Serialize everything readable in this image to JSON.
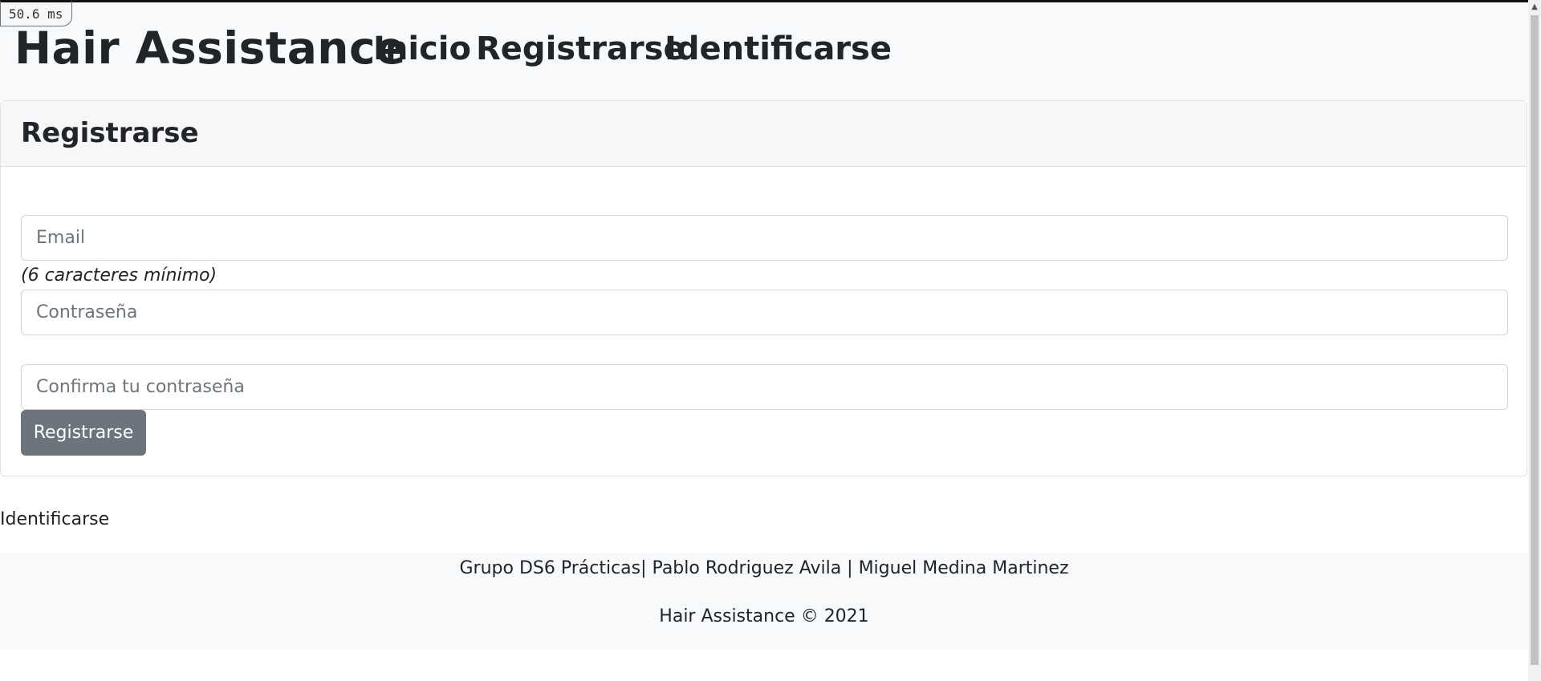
{
  "perf_badge": "50.6 ms",
  "navbar": {
    "brand": "Hair Assistance",
    "links": [
      "Inicio",
      "Registrarse",
      "Identificarse"
    ]
  },
  "card": {
    "title": "Registrarse",
    "email_placeholder": "Email",
    "password_hint": "(6 caracteres mínimo)",
    "password_placeholder": "Contraseña",
    "confirm_placeholder": "Confirma tu contraseña",
    "submit_label": "Registrarse"
  },
  "login_link": "Identificarse",
  "footer": {
    "credits": "Grupo DS6 Prácticas| Pablo Rodriguez Avila | Miguel Medina Martinez",
    "copyright": "Hair Assistance © 2021"
  },
  "colors": {
    "navbar_bg": "#f8f9fa",
    "button_bg": "#6c757d",
    "text": "#212529"
  }
}
